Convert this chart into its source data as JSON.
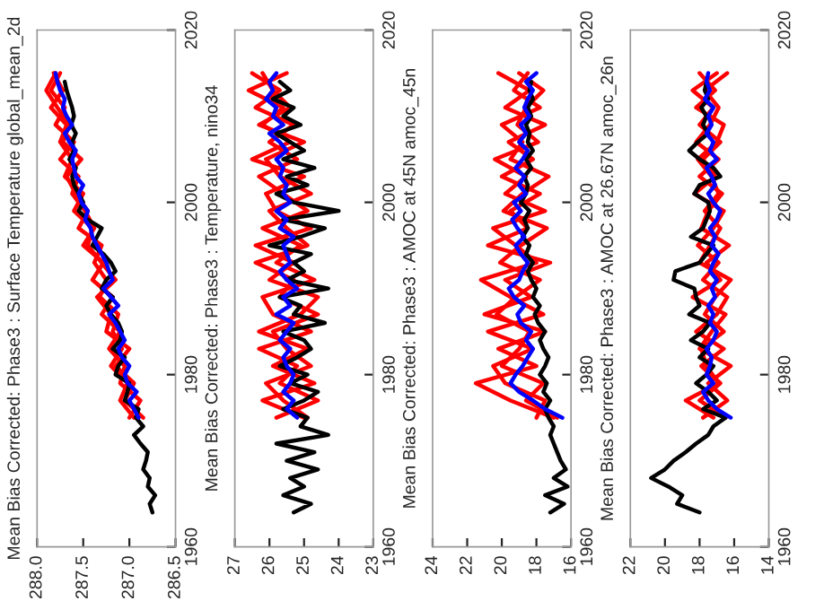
{
  "chart_data": [
    {
      "type": "line",
      "title": "Mean Bias Corrected: Phase3 : Surface Temperature global_mean_2d",
      "ylim": [
        1960,
        2020
      ],
      "yticks": [
        1960,
        1980,
        2000,
        2020
      ],
      "xlim": [
        288.0,
        286.5
      ],
      "xticks": [
        286.5,
        {
          "value": 287.0,
          "label": "287.0"
        },
        287.5,
        {
          "value": 288.0,
          "label": "288.0"
        }
      ],
      "grid": false,
      "legend": false,
      "series": [
        {
          "color": "#ff0000",
          "values": [
            1975,
            1977,
            1979,
            1981,
            1983,
            1985,
            1987,
            1989,
            1991,
            1993,
            1995,
            1997,
            1999,
            2001,
            2003,
            2005,
            2007,
            2009,
            2011,
            2013,
            2015
          ],
          "x": [
            286.85,
            287.05,
            286.95,
            287.15,
            287.0,
            287.25,
            287.2,
            287.35,
            287.15,
            287.3,
            287.45,
            287.4,
            287.6,
            287.5,
            287.7,
            287.62,
            287.75,
            287.68,
            287.85,
            287.72,
            287.82
          ]
        },
        {
          "color": "#ff0000",
          "values": [
            1975,
            1977,
            1979,
            1981,
            1983,
            1985,
            1987,
            1989,
            1991,
            1993,
            1995,
            1997,
            1999,
            2001,
            2003,
            2005,
            2007,
            2009,
            2011,
            2013,
            2015
          ],
          "x": [
            287.0,
            286.88,
            287.1,
            287.05,
            287.22,
            287.1,
            287.3,
            287.18,
            287.4,
            287.28,
            287.5,
            287.38,
            287.48,
            287.62,
            287.55,
            287.75,
            287.6,
            287.8,
            287.7,
            287.85,
            287.75
          ]
        },
        {
          "color": "#ff0000",
          "values": [
            1975,
            1977,
            1979,
            1981,
            1983,
            1985,
            1987,
            1989,
            1991,
            1993,
            1995,
            1997,
            1999,
            2001,
            2003,
            2005,
            2007,
            2009,
            2011,
            2013,
            2015
          ],
          "x": [
            286.95,
            287.1,
            287.02,
            287.2,
            287.08,
            287.18,
            287.12,
            287.32,
            287.25,
            287.38,
            287.3,
            287.55,
            287.45,
            287.58,
            287.68,
            287.52,
            287.72,
            287.65,
            287.78,
            287.9,
            287.8
          ]
        },
        {
          "color": "#000000",
          "values": [
            1964,
            1965,
            1966,
            1967,
            1968,
            1969,
            1970,
            1971,
            1972,
            1973,
            1974,
            1975,
            1976,
            1977,
            1978,
            1979,
            1980,
            1981,
            1982,
            1983,
            1984,
            1985,
            1986,
            1987,
            1988,
            1989,
            1990,
            1991,
            1992,
            1993,
            1994,
            1995,
            1996,
            1997,
            1998,
            1999,
            2000,
            2001,
            2002,
            2003,
            2004,
            2005,
            2006,
            2007,
            2008,
            2009,
            2010,
            2011,
            2012,
            2013,
            2014
          ],
          "x": [
            286.75,
            286.78,
            286.72,
            286.8,
            286.78,
            286.85,
            286.82,
            286.8,
            286.88,
            286.95,
            286.85,
            286.93,
            286.9,
            287.05,
            287.02,
            287.0,
            287.15,
            287.12,
            287.05,
            287.18,
            287.1,
            287.08,
            287.12,
            287.2,
            287.25,
            287.18,
            287.3,
            287.25,
            287.15,
            287.2,
            287.28,
            287.4,
            287.35,
            287.3,
            287.45,
            287.55,
            287.5,
            287.55,
            287.6,
            287.62,
            287.58,
            287.65,
            287.6,
            287.62,
            287.58,
            287.63,
            287.6,
            287.62,
            287.65,
            287.68,
            287.7
          ]
        },
        {
          "color": "#0000ff",
          "values": [
            1975,
            1976,
            1977,
            1978,
            1979,
            1980,
            1981,
            1982,
            1983,
            1984,
            1985,
            1986,
            1987,
            1988,
            1989,
            1990,
            1991,
            1992,
            1993,
            1994,
            1995,
            1996,
            1997,
            1998,
            1999,
            2000,
            2001,
            2002,
            2003,
            2004,
            2005,
            2006,
            2007,
            2008,
            2009,
            2010,
            2011,
            2012,
            2013,
            2014,
            2015
          ],
          "x": [
            286.9,
            286.95,
            287.0,
            286.92,
            287.02,
            287.05,
            287.0,
            287.08,
            287.12,
            287.05,
            287.1,
            287.15,
            287.22,
            287.12,
            287.2,
            287.28,
            287.18,
            287.22,
            287.25,
            287.3,
            287.35,
            287.4,
            287.42,
            287.48,
            287.45,
            287.52,
            287.55,
            287.5,
            287.58,
            287.6,
            287.62,
            287.58,
            287.65,
            287.7,
            287.62,
            287.68,
            287.72,
            287.7,
            287.75,
            287.78,
            287.8
          ]
        }
      ]
    },
    {
      "type": "line",
      "title": "Mean Bias Corrected: Phase3 : Temperature, nino34",
      "ylim": [
        1960,
        2020
      ],
      "yticks": [
        1960,
        1980,
        2000,
        2020
      ],
      "xlim": [
        27,
        23
      ],
      "xticks": [
        23,
        24,
        25,
        26,
        27
      ],
      "grid": false,
      "legend": false,
      "series": [
        {
          "color": "#ff0000",
          "values": [
            1975,
            1977,
            1979,
            1981,
            1983,
            1985,
            1987,
            1989,
            1991,
            1993,
            1995,
            1997,
            1999,
            2001,
            2003,
            2005,
            2007,
            2009,
            2011,
            2013,
            2015
          ],
          "x": [
            25.0,
            26.2,
            24.7,
            25.9,
            24.9,
            26.3,
            25.1,
            24.6,
            26.0,
            25.3,
            26.4,
            24.8,
            25.8,
            26.1,
            25.0,
            26.5,
            25.4,
            26.2,
            25.6,
            26.6,
            25.5
          ]
        },
        {
          "color": "#ff0000",
          "values": [
            1975,
            1977,
            1979,
            1981,
            1983,
            1985,
            1987,
            1989,
            1991,
            1993,
            1995,
            1997,
            1999,
            2001,
            2003,
            2005,
            2007,
            2009,
            2011,
            2013,
            2015
          ],
          "x": [
            25.8,
            24.6,
            25.7,
            25.2,
            26.3,
            24.8,
            25.9,
            26.2,
            24.7,
            25.8,
            25.1,
            26.2,
            24.9,
            25.6,
            26.3,
            25.2,
            26.0,
            25.3,
            26.4,
            25.7,
            26.5
          ]
        },
        {
          "color": "#ff0000",
          "values": [
            1975,
            1977,
            1979,
            1981,
            1983,
            1985,
            1987,
            1989,
            1991,
            1993,
            1995,
            1997,
            1999,
            2001,
            2003,
            2005,
            2007,
            2009,
            2011,
            2013,
            2015
          ],
          "x": [
            24.9,
            25.6,
            26.1,
            24.8,
            25.5,
            25.9,
            24.6,
            25.7,
            25.3,
            26.4,
            24.9,
            25.5,
            26.0,
            24.8,
            25.7,
            26.1,
            25.0,
            26.3,
            25.4,
            25.9,
            26.2
          ]
        },
        {
          "color": "#000000",
          "values": [
            1964,
            1965,
            1966,
            1967,
            1968,
            1969,
            1970,
            1971,
            1972,
            1973,
            1974,
            1975,
            1976,
            1977,
            1978,
            1979,
            1980,
            1981,
            1982,
            1983,
            1984,
            1985,
            1986,
            1987,
            1988,
            1989,
            1990,
            1991,
            1992,
            1993,
            1994,
            1995,
            1996,
            1997,
            1998,
            1999,
            2000,
            2001,
            2002,
            2003,
            2004,
            2005,
            2006,
            2007,
            2008,
            2009,
            2010,
            2011,
            2012,
            2013,
            2014
          ],
          "x": [
            25.3,
            24.8,
            25.6,
            25.0,
            25.4,
            24.6,
            25.5,
            24.7,
            25.8,
            24.3,
            25.1,
            24.9,
            25.6,
            25.0,
            24.6,
            25.4,
            24.9,
            25.7,
            25.2,
            24.8,
            25.0,
            25.6,
            24.4,
            25.3,
            25.1,
            25.7,
            24.3,
            25.5,
            25.0,
            25.3,
            24.8,
            26.0,
            25.1,
            24.4,
            25.6,
            24.0,
            25.3,
            25.8,
            24.9,
            25.5,
            24.7,
            25.6,
            25.0,
            25.4,
            25.8,
            25.1,
            25.6,
            25.3,
            25.9,
            25.4,
            25.7
          ]
        },
        {
          "color": "#0000ff",
          "values": [
            1975,
            1976,
            1977,
            1978,
            1979,
            1980,
            1981,
            1982,
            1983,
            1984,
            1985,
            1986,
            1987,
            1988,
            1989,
            1990,
            1991,
            1992,
            1993,
            1994,
            1995,
            1996,
            1997,
            1998,
            1999,
            2000,
            2001,
            2002,
            2003,
            2004,
            2005,
            2006,
            2007,
            2008,
            2009,
            2010,
            2011,
            2012,
            2013,
            2014,
            2015
          ],
          "x": [
            25.2,
            25.5,
            25.3,
            25.6,
            25.4,
            25.3,
            25.5,
            25.6,
            25.4,
            25.7,
            25.5,
            25.3,
            25.8,
            25.4,
            25.6,
            25.2,
            25.5,
            25.7,
            25.4,
            25.5,
            25.6,
            25.3,
            25.7,
            25.5,
            25.8,
            25.4,
            25.6,
            25.5,
            25.7,
            25.6,
            25.8,
            25.5,
            25.7,
            26.0,
            25.6,
            25.9,
            25.8,
            26.1,
            25.9,
            26.0,
            25.8
          ]
        }
      ]
    },
    {
      "type": "line",
      "title": "Mean Bias Corrected: Phase3 : AMOC at 45N amoc_45n",
      "ylim": [
        1960,
        2020
      ],
      "yticks": [
        1960,
        1980,
        2000,
        2020
      ],
      "xlim": [
        24,
        16
      ],
      "xticks": [
        16,
        18,
        20,
        22,
        24
      ],
      "grid": false,
      "legend": false,
      "series": [
        {
          "color": "#ff0000",
          "values": [
            1975,
            1977,
            1979,
            1981,
            1983,
            1985,
            1987,
            1989,
            1991,
            1993,
            1995,
            1997,
            1999,
            2001,
            2003,
            2005,
            2007,
            2009,
            2011,
            2013,
            2015
          ],
          "x": [
            17.0,
            19.5,
            21.5,
            18.0,
            20.2,
            17.5,
            21.0,
            18.3,
            19.8,
            17.2,
            20.8,
            18.5,
            19.5,
            17.8,
            20.0,
            18.2,
            19.6,
            17.5,
            19.8,
            18.4,
            20.2
          ]
        },
        {
          "color": "#ff0000",
          "values": [
            1975,
            1977,
            1979,
            1981,
            1983,
            1985,
            1987,
            1989,
            1991,
            1993,
            1995,
            1997,
            1999,
            2001,
            2003,
            2005,
            2007,
            2009,
            2011,
            2013,
            2015
          ],
          "x": [
            18.0,
            17.5,
            19.8,
            20.5,
            18.2,
            20.8,
            17.6,
            19.5,
            21.2,
            18.0,
            19.2,
            20.5,
            17.5,
            19.8,
            18.6,
            20.4,
            17.9,
            19.1,
            18.6,
            17.6,
            19.0
          ]
        },
        {
          "color": "#ff0000",
          "values": [
            1975,
            1977,
            1979,
            1981,
            1983,
            1985,
            1987,
            1989,
            1991,
            1993,
            1995,
            1997,
            1999,
            2001,
            2003,
            2005,
            2007,
            2009,
            2011,
            2013,
            2015
          ],
          "x": [
            16.8,
            18.6,
            17.6,
            20.0,
            19.0,
            18.4,
            20.3,
            19.2,
            17.8,
            20.1,
            18.9,
            17.4,
            19.9,
            18.8,
            17.3,
            19.5,
            18.8,
            20.0,
            17.8,
            19.3,
            18.5
          ]
        },
        {
          "color": "#000000",
          "values": [
            1964,
            1965,
            1966,
            1967,
            1968,
            1969,
            1970,
            1971,
            1972,
            1973,
            1974,
            1975,
            1976,
            1977,
            1978,
            1979,
            1980,
            1981,
            1982,
            1983,
            1984,
            1985,
            1986,
            1987,
            1988,
            1989,
            1990,
            1991,
            1992,
            1993,
            1994,
            1995,
            1996,
            1997,
            1998,
            1999,
            2000,
            2001,
            2002,
            2003,
            2004,
            2005,
            2006,
            2007,
            2008,
            2009,
            2010,
            2011,
            2012,
            2013,
            2014
          ],
          "x": [
            17.2,
            16.4,
            17.5,
            16.2,
            17.0,
            16.3,
            16.6,
            16.8,
            17.0,
            17.2,
            17.0,
            17.3,
            17.5,
            17.2,
            17.6,
            17.4,
            17.8,
            17.5,
            17.3,
            17.6,
            17.8,
            17.5,
            17.9,
            18.1,
            17.8,
            18.2,
            18.0,
            18.3,
            18.5,
            18.2,
            18.6,
            18.4,
            18.8,
            18.5,
            18.7,
            18.4,
            18.9,
            18.6,
            18.5,
            18.7,
            18.3,
            18.6,
            18.2,
            18.5,
            18.4,
            18.6,
            18.3,
            18.5,
            18.2,
            18.4,
            18.3
          ]
        },
        {
          "color": "#0000ff",
          "values": [
            1975,
            1976,
            1977,
            1978,
            1979,
            1980,
            1981,
            1982,
            1983,
            1984,
            1985,
            1986,
            1987,
            1988,
            1989,
            1990,
            1991,
            1992,
            1993,
            1994,
            1995,
            1996,
            1997,
            1998,
            1999,
            2000,
            2001,
            2002,
            2003,
            2004,
            2005,
            2006,
            2007,
            2008,
            2009,
            2010,
            2011,
            2012,
            2013,
            2014,
            2015
          ],
          "x": [
            16.5,
            17.5,
            18.2,
            19.0,
            19.5,
            19.2,
            18.8,
            18.5,
            18.2,
            18.6,
            18.3,
            18.9,
            19.1,
            18.7,
            19.3,
            19.6,
            19.0,
            18.8,
            18.5,
            18.9,
            19.2,
            18.7,
            19.1,
            19.4,
            18.9,
            19.3,
            18.6,
            19.0,
            18.7,
            19.2,
            18.8,
            18.5,
            19.0,
            18.6,
            18.9,
            18.4,
            18.7,
            18.5,
            18.2,
            18.6,
            18.0
          ]
        }
      ]
    },
    {
      "type": "line",
      "title": "Mean Bias Corrected: Phase3 : AMOC at 26.67N amoc_26n",
      "ylim": [
        1960,
        2020
      ],
      "yticks": [
        1960,
        1980,
        2000,
        2020
      ],
      "xlim": [
        22,
        14
      ],
      "xticks": [
        14,
        16,
        18,
        20,
        22
      ],
      "grid": false,
      "legend": false,
      "series": [
        {
          "color": "#ff0000",
          "values": [
            1975,
            1977,
            1979,
            1981,
            1983,
            1985,
            1987,
            1989,
            1991,
            1993,
            1995,
            1997,
            1999,
            2001,
            2003,
            2005,
            2007,
            2009,
            2011,
            2013,
            2015
          ],
          "x": [
            16.5,
            18.0,
            16.8,
            17.9,
            16.6,
            18.2,
            17.0,
            16.4,
            17.8,
            16.9,
            18.1,
            17.2,
            16.6,
            18.3,
            17.1,
            17.8,
            16.8,
            18.0,
            17.2,
            18.4,
            17.0
          ]
        },
        {
          "color": "#ff0000",
          "values": [
            1975,
            1977,
            1979,
            1981,
            1983,
            1985,
            1987,
            1989,
            1991,
            1993,
            1995,
            1997,
            1999,
            2001,
            2003,
            2005,
            2007,
            2009,
            2011,
            2013,
            2015
          ],
          "x": [
            17.8,
            16.4,
            17.5,
            16.2,
            18.0,
            17.3,
            16.5,
            18.4,
            16.8,
            17.6,
            16.3,
            17.9,
            17.5,
            16.7,
            18.0,
            16.9,
            18.2,
            17.4,
            16.9,
            17.7,
            16.4
          ]
        },
        {
          "color": "#ff0000",
          "values": [
            1975,
            1977,
            1979,
            1981,
            1983,
            1985,
            1987,
            1989,
            1991,
            1993,
            1995,
            1997,
            1999,
            2001,
            2003,
            2005,
            2007,
            2009,
            2011,
            2013,
            2015
          ],
          "x": [
            17.2,
            18.8,
            16.9,
            17.6,
            17.9,
            16.6,
            17.7,
            17.1,
            16.2,
            18.0,
            17.4,
            16.8,
            17.7,
            16.9,
            17.3,
            18.1,
            17.0,
            16.6,
            18.2,
            17.1,
            18.0
          ]
        },
        {
          "color": "#000000",
          "values": [
            1964,
            1965,
            1966,
            1967,
            1968,
            1969,
            1970,
            1971,
            1972,
            1973,
            1974,
            1975,
            1976,
            1977,
            1978,
            1979,
            1980,
            1981,
            1982,
            1983,
            1984,
            1985,
            1986,
            1987,
            1988,
            1989,
            1990,
            1991,
            1992,
            1993,
            1994,
            1995,
            1996,
            1997,
            1998,
            1999,
            2000,
            2001,
            2002,
            2003,
            2004,
            2005,
            2006,
            2007,
            2008,
            2009,
            2010,
            2011,
            2012,
            2013,
            2014
          ],
          "x": [
            18.0,
            19.3,
            19.0,
            19.8,
            20.8,
            20.0,
            19.5,
            18.8,
            18.2,
            17.5,
            17.2,
            16.5,
            17.8,
            17.0,
            17.5,
            18.2,
            17.6,
            17.2,
            18.0,
            17.5,
            18.5,
            17.8,
            17.4,
            18.6,
            18.0,
            18.2,
            18.3,
            19.5,
            19.4,
            18.0,
            17.6,
            17.2,
            18.5,
            17.8,
            17.6,
            17.4,
            17.5,
            18.3,
            18.0,
            16.8,
            17.2,
            18.0,
            18.6,
            18.1,
            17.5,
            17.8,
            17.6,
            17.9,
            17.5,
            17.7,
            17.6
          ]
        },
        {
          "color": "#0000ff",
          "values": [
            1975,
            1976,
            1977,
            1978,
            1979,
            1980,
            1981,
            1982,
            1983,
            1984,
            1985,
            1986,
            1987,
            1988,
            1989,
            1990,
            1991,
            1992,
            1993,
            1994,
            1995,
            1996,
            1997,
            1998,
            1999,
            2000,
            2001,
            2002,
            2003,
            2004,
            2005,
            2006,
            2007,
            2008,
            2009,
            2010,
            2011,
            2012,
            2013,
            2014,
            2015
          ],
          "x": [
            16.2,
            17.0,
            17.5,
            17.8,
            17.2,
            17.6,
            17.4,
            17.3,
            17.6,
            17.2,
            17.0,
            17.4,
            17.2,
            17.5,
            17.1,
            17.3,
            17.0,
            17.4,
            17.2,
            16.9,
            17.3,
            17.1,
            17.4,
            17.0,
            16.8,
            17.2,
            17.5,
            17.1,
            17.3,
            17.6,
            17.0,
            17.4,
            17.2,
            17.6,
            17.3,
            17.5,
            17.2,
            17.7,
            17.4,
            17.6,
            17.5
          ]
        }
      ]
    }
  ]
}
